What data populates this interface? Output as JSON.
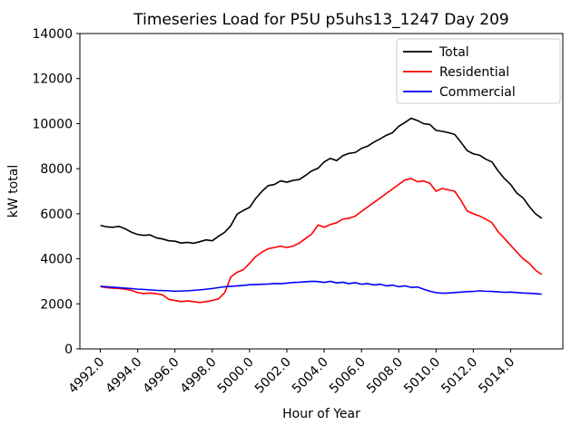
{
  "chart_data": {
    "type": "line",
    "title": "Timeseries Load for P5U p5uhs13_1247  Day 209",
    "xlabel": "Hour of Year",
    "ylabel": "kW total",
    "grid": false,
    "legend_position": "upper right",
    "xlim": [
      4990.9,
      5016.8
    ],
    "ylim": [
      0,
      14000
    ],
    "xticks": [
      4992,
      4994,
      4996,
      4998,
      5000,
      5002,
      5004,
      5006,
      5008,
      5010,
      5012,
      5014
    ],
    "xtick_labels": [
      "4992.0",
      "4994.0",
      "4996.0",
      "4998.0",
      "5000.0",
      "5002.0",
      "5004.0",
      "5006.0",
      "5008.0",
      "5010.0",
      "5012.0",
      "5014.0"
    ],
    "yticks": [
      0,
      2000,
      4000,
      6000,
      8000,
      10000,
      12000,
      14000
    ],
    "ytick_labels": [
      "0",
      "2000",
      "4000",
      "6000",
      "8000",
      "10000",
      "12000",
      "14000"
    ],
    "x": [
      4992,
      4992.33,
      4992.67,
      4993,
      4993.33,
      4993.67,
      4994,
      4994.33,
      4994.67,
      4995,
      4995.33,
      4995.67,
      4996,
      4996.33,
      4996.67,
      4997,
      4997.33,
      4997.67,
      4998,
      4998.33,
      4998.67,
      4999,
      4999.33,
      4999.67,
      5000,
      5000.33,
      5000.67,
      5001,
      5001.33,
      5001.67,
      5002,
      5002.33,
      5002.67,
      5003,
      5003.33,
      5003.67,
      5004,
      5004.33,
      5004.67,
      5005,
      5005.33,
      5005.67,
      5006,
      5006.33,
      5006.67,
      5007,
      5007.33,
      5007.67,
      5008,
      5008.33,
      5008.67,
      5009,
      5009.33,
      5009.67,
      5010,
      5010.33,
      5010.67,
      5011,
      5011.33,
      5011.67,
      5012,
      5012.33,
      5012.67,
      5013,
      5013.33,
      5013.67,
      5014,
      5014.33,
      5014.67,
      5015,
      5015.33,
      5015.67
    ],
    "series": [
      {
        "name": "Total",
        "color": "#000000",
        "values": [
          5480,
          5420,
          5400,
          5440,
          5330,
          5180,
          5080,
          5040,
          5060,
          4930,
          4880,
          4800,
          4780,
          4700,
          4730,
          4690,
          4760,
          4840,
          4800,
          5000,
          5180,
          5480,
          5980,
          6150,
          6280,
          6680,
          7000,
          7250,
          7300,
          7460,
          7400,
          7480,
          7520,
          7700,
          7900,
          8020,
          8300,
          8460,
          8360,
          8580,
          8680,
          8720,
          8900,
          9000,
          9180,
          9320,
          9480,
          9600,
          9880,
          10050,
          10240,
          10140,
          10000,
          9960,
          9700,
          9660,
          9600,
          9520,
          9180,
          8800,
          8660,
          8600,
          8420,
          8300,
          7900,
          7560,
          7300,
          6920,
          6700,
          6320,
          6000,
          5800
        ]
      },
      {
        "name": "Residential",
        "color": "#ff0000",
        "values": [
          2760,
          2720,
          2700,
          2680,
          2650,
          2600,
          2500,
          2460,
          2480,
          2450,
          2400,
          2200,
          2150,
          2100,
          2130,
          2100,
          2060,
          2100,
          2150,
          2220,
          2500,
          3200,
          3400,
          3520,
          3800,
          4100,
          4300,
          4450,
          4500,
          4560,
          4500,
          4560,
          4700,
          4900,
          5100,
          5500,
          5400,
          5520,
          5600,
          5760,
          5800,
          5900,
          6100,
          6300,
          6500,
          6700,
          6900,
          7100,
          7300,
          7500,
          7560,
          7420,
          7460,
          7350,
          7000,
          7120,
          7060,
          7000,
          6600,
          6120,
          6000,
          5900,
          5760,
          5600,
          5200,
          4900,
          4600,
          4300,
          4000,
          3800,
          3500,
          3300
        ]
      },
      {
        "name": "Commercial",
        "color": "#0000ff",
        "values": [
          2780,
          2760,
          2740,
          2720,
          2700,
          2680,
          2650,
          2640,
          2620,
          2600,
          2590,
          2580,
          2560,
          2570,
          2580,
          2600,
          2620,
          2650,
          2680,
          2720,
          2760,
          2780,
          2800,
          2820,
          2850,
          2860,
          2870,
          2880,
          2900,
          2900,
          2920,
          2950,
          2960,
          2980,
          3000,
          2990,
          2950,
          3000,
          2930,
          2960,
          2900,
          2940,
          2870,
          2900,
          2840,
          2870,
          2800,
          2830,
          2760,
          2800,
          2730,
          2750,
          2650,
          2560,
          2500,
          2470,
          2480,
          2500,
          2520,
          2540,
          2550,
          2580,
          2560,
          2550,
          2530,
          2510,
          2520,
          2500,
          2480,
          2470,
          2450,
          2430
        ]
      }
    ]
  }
}
